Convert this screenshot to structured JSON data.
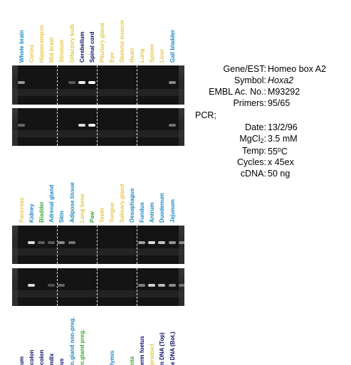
{
  "lanes_top": [
    {
      "label": "Whole brain",
      "color": "#1e88c8"
    },
    {
      "label": "Cortex",
      "color": "#e6c84a"
    },
    {
      "label": "Hippocampus",
      "color": "#e6c84a"
    },
    {
      "label": "Mid brain",
      "color": "#e6c84a"
    },
    {
      "label": "Striatum",
      "color": "#e6c84a"
    },
    {
      "label": "Olfactory bulb",
      "color": "#e6c84a"
    },
    {
      "label": "Cerebellum",
      "color": "#10106e"
    },
    {
      "label": "Spinal cord",
      "color": "#10106e"
    },
    {
      "label": "Pituitary gland",
      "color": "#e6c84a"
    },
    {
      "label": "Eye",
      "color": "#e6c84a"
    },
    {
      "label": "Skeletal muscle",
      "color": "#e6c84a"
    },
    {
      "label": "Heart",
      "color": "#e6c84a"
    },
    {
      "label": "Lung",
      "color": "#e6c84a"
    },
    {
      "label": "Spleen",
      "color": "#e6c84a"
    },
    {
      "label": "Liver",
      "color": "#e6c84a"
    },
    {
      "label": "Gall bladder",
      "color": "#1e88c8"
    }
  ],
  "lanes_mid": [
    {
      "label": "Pancreas",
      "color": "#e6c84a"
    },
    {
      "label": "Kidney",
      "color": "#1e88c8"
    },
    {
      "label": "Bladder",
      "color": "#3aa83a"
    },
    {
      "label": "Adrenal gland",
      "color": "#1e88c8"
    },
    {
      "label": "Skin",
      "color": "#1e88c8"
    },
    {
      "label": "Adipose tissue",
      "color": "#1e88c8"
    },
    {
      "label": "Long bone",
      "color": "#e6c84a"
    },
    {
      "label": "Paw",
      "color": "#3aa83a"
    },
    {
      "label": "Teeth",
      "color": "#e6c84a"
    },
    {
      "label": "Tongue",
      "color": "#e6c84a"
    },
    {
      "label": "Salivary gland",
      "color": "#e6c84a"
    },
    {
      "label": "Oesophagus",
      "color": "#1e88c8"
    },
    {
      "label": "Fundus",
      "color": "#1e88c8"
    },
    {
      "label": "Antrum",
      "color": "#1e88c8"
    },
    {
      "label": "Duodenum",
      "color": "#1e88c8"
    },
    {
      "label": "Jejunum",
      "color": "#1e88c8"
    }
  ],
  "lanes_bottom": [
    {
      "label": "um",
      "color": "#10106e"
    },
    {
      "label": "colon",
      "color": "#10106e"
    },
    {
      "label": "colon",
      "color": "#10106e"
    },
    {
      "label": "ndix",
      "color": "#10106e"
    },
    {
      "label": "us",
      "color": "#10106e"
    },
    {
      "label": "n.gland non-preg.",
      "color": "#1e88c8"
    },
    {
      "label": "n.gland preg.",
      "color": "#3aa83a"
    },
    {
      "label": "",
      "color": "#e6c84a"
    },
    {
      "label": "",
      "color": "#e6c84a"
    },
    {
      "label": "lymis",
      "color": "#1e88c8"
    },
    {
      "label": "",
      "color": "#e6c84a"
    },
    {
      "label": "nta",
      "color": "#3aa83a"
    },
    {
      "label": "erm foetus",
      "color": "#10106e"
    },
    {
      "label": "product",
      "color": "#e6c84a"
    },
    {
      "label": "n DNA (Top)",
      "color": "#10106e"
    },
    {
      "label": "e DNA (Bot.)",
      "color": "#10106e"
    }
  ],
  "gels": {
    "g1_bands": [
      {
        "lane": 0,
        "i": 0.55
      },
      {
        "lane": 5,
        "i": 0.3
      },
      {
        "lane": 6,
        "i": 0.95
      },
      {
        "lane": 7,
        "i": 1.0
      },
      {
        "lane": 15,
        "i": 0.5
      }
    ],
    "g2_bands": [
      {
        "lane": 0,
        "i": 0.35
      },
      {
        "lane": 6,
        "i": 0.85
      },
      {
        "lane": 7,
        "i": 0.95
      },
      {
        "lane": 15,
        "i": 0.4
      }
    ],
    "g3_bands": [
      {
        "lane": 1,
        "i": 0.85
      },
      {
        "lane": 2,
        "i": 0.3
      },
      {
        "lane": 3,
        "i": 0.3
      },
      {
        "lane": 4,
        "i": 0.5
      },
      {
        "lane": 5,
        "i": 0.4
      },
      {
        "lane": 12,
        "i": 0.6
      },
      {
        "lane": 13,
        "i": 0.85
      },
      {
        "lane": 14,
        "i": 0.75
      },
      {
        "lane": 15,
        "i": 0.55
      },
      {
        "lane": 16,
        "i": 0.45
      }
    ],
    "g4_bands": [
      {
        "lane": 1,
        "i": 0.85
      },
      {
        "lane": 3,
        "i": 0.25
      },
      {
        "lane": 4,
        "i": 0.35
      },
      {
        "lane": 12,
        "i": 0.45
      },
      {
        "lane": 13,
        "i": 0.8
      },
      {
        "lane": 14,
        "i": 0.7
      },
      {
        "lane": 15,
        "i": 0.5
      },
      {
        "lane": 16,
        "i": 0.35
      }
    ]
  },
  "info": {
    "gene_label": "Gene/EST:",
    "gene_value": "Homeo box A2",
    "symbol_label": "Symbol:",
    "symbol_value": "Hoxa2",
    "embl_label": "EMBL Ac. No.:",
    "embl_value": "M93292",
    "primers_label": "Primers:",
    "primers_value": "95/65",
    "pcr_label": "PCR;",
    "date_label": "Date:",
    "date_value": "13/2/96",
    "mgcl_label_main": "MgCl",
    "mgcl_label_sub": "2",
    "mgcl_label_colon": ":",
    "mgcl_value": "3.5 mM",
    "temp_label": "Temp:",
    "temp_value_main": "55",
    "temp_value_sup": "o",
    "temp_value_unit": "C",
    "cycles_label": "Cycles:",
    "cycles_value": "x 45ex",
    "cdna_label": "cDNA:",
    "cdna_value": "50 ng"
  }
}
